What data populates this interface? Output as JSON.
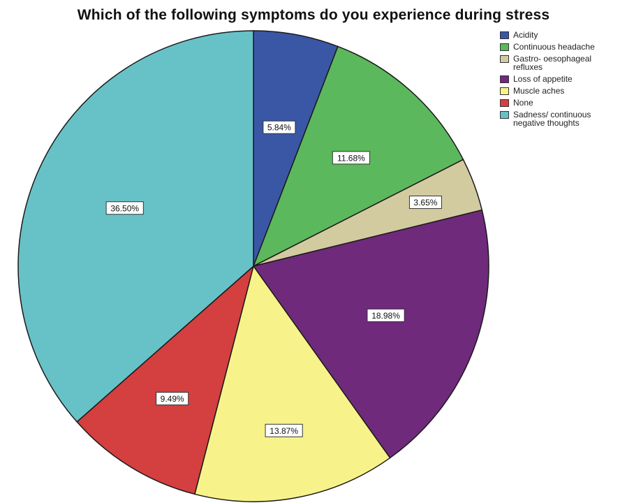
{
  "chart_data": {
    "type": "pie",
    "title": "Which of the following symptoms do you experience during stress",
    "start_angle_deg": 0,
    "direction": "clockwise",
    "legend_placement": "top-right",
    "categories": [
      "Acidity",
      "Continuous headache",
      "Gastro- oesophageal refluxes",
      "Loss of appetite",
      "Muscle aches",
      "None",
      "Sadness/ continuous negative thoughts"
    ],
    "values": [
      5.84,
      11.68,
      3.65,
      18.98,
      13.87,
      9.49,
      36.5
    ],
    "data_labels": [
      "5.84%",
      "11.68%",
      "3.65%",
      "18.98%",
      "13.87%",
      "9.49%",
      "36.50%"
    ],
    "colors": [
      "#3a57a6",
      "#5cb85c",
      "#d3cba0",
      "#6f2a7c",
      "#f7f38a",
      "#d43f3f",
      "#67c2c8"
    ],
    "legend_lines": [
      [
        "Acidity"
      ],
      [
        "Continuous headache"
      ],
      [
        "Gastro- oesophageal",
        "refluxes"
      ],
      [
        "Loss of appetite"
      ],
      [
        "Muscle aches"
      ],
      [
        "None"
      ],
      [
        "Sadness/ continuous",
        "negative thoughts"
      ]
    ]
  }
}
